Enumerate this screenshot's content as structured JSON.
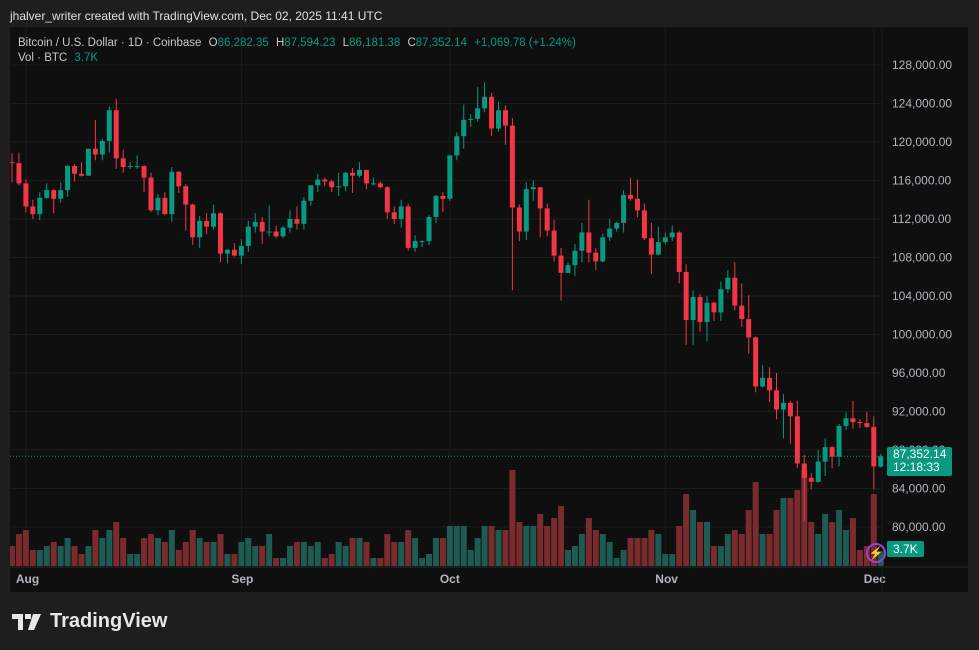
{
  "header": {
    "attribution": "jhalver_writer created with TradingView.com, Dec 02, 2025 11:41 UTC"
  },
  "legend": {
    "symbol": "Bitcoin / U.S. Dollar · 1D · Coinbase",
    "o_label": "O",
    "o": "86,282.35",
    "h_label": "H",
    "h": "87,594.23",
    "l_label": "L",
    "l": "86,181.38",
    "c_label": "C",
    "c": "87,352.14",
    "change": "+1,069.78 (+1.24%)",
    "vol_label": "Vol · BTC",
    "vol": "3.7K"
  },
  "price_tag": {
    "price": "87,352.14",
    "countdown": "12:18:33",
    "volume": "3.7K"
  },
  "brand": {
    "name": "TradingView"
  },
  "colors": {
    "up": "#089981",
    "down": "#f23645",
    "vol_up": "#1d5b53",
    "vol_down": "#7a2b2d",
    "background": "#0f0f0f"
  },
  "chart_data": {
    "type": "candlestick",
    "ylim": [
      76000,
      130000
    ],
    "y_ticks": [
      "80,000.00",
      "84,000.00",
      "88,000.00",
      "92,000.00",
      "96,000.00",
      "100,000.00",
      "104,000.00",
      "108,000.00",
      "112,000.00",
      "116,000.00",
      "120,000.00",
      "124,000.00",
      "128,000.00"
    ],
    "x_ticks": [
      "Aug",
      "Sep",
      "Oct",
      "Nov",
      "Dec"
    ],
    "volume_unit": "K BTC",
    "candles_fields": [
      "date",
      "open",
      "high",
      "low",
      "close",
      "volume"
    ],
    "candles": [
      [
        "07-30",
        117900,
        118800,
        115800,
        117800,
        5
      ],
      [
        "07-31",
        117800,
        118900,
        115500,
        115700,
        8
      ],
      [
        "08-01",
        115700,
        116100,
        112700,
        113300,
        9
      ],
      [
        "08-02",
        113300,
        114000,
        112000,
        112500,
        4
      ],
      [
        "08-03",
        112500,
        114800,
        111900,
        114200,
        4
      ],
      [
        "08-04",
        114200,
        115700,
        114100,
        115000,
        5
      ],
      [
        "08-05",
        115000,
        115100,
        112600,
        114100,
        6
      ],
      [
        "08-06",
        114100,
        115800,
        113700,
        115000,
        5
      ],
      [
        "08-07",
        115000,
        117600,
        114300,
        117500,
        7
      ],
      [
        "08-08",
        117500,
        117700,
        115900,
        116700,
        5
      ],
      [
        "08-09",
        116700,
        117900,
        116400,
        116500,
        3
      ],
      [
        "08-10",
        116500,
        119300,
        116500,
        119300,
        5
      ],
      [
        "08-11",
        119300,
        122300,
        118100,
        118700,
        9
      ],
      [
        "08-12",
        118700,
        120300,
        118100,
        120100,
        7
      ],
      [
        "08-13",
        120100,
        123700,
        118900,
        123300,
        9
      ],
      [
        "08-14",
        123300,
        124500,
        117200,
        118300,
        11
      ],
      [
        "08-15",
        118300,
        119200,
        116800,
        117400,
        7
      ],
      [
        "08-16",
        117400,
        117900,
        117200,
        117500,
        3
      ],
      [
        "08-17",
        117500,
        118600,
        117200,
        117500,
        3
      ],
      [
        "08-18",
        117500,
        117600,
        114800,
        116300,
        7
      ],
      [
        "08-19",
        116300,
        116800,
        112700,
        112900,
        8
      ],
      [
        "08-20",
        112900,
        114600,
        112400,
        114200,
        7
      ],
      [
        "08-21",
        114200,
        114800,
        112400,
        112500,
        6
      ],
      [
        "08-22",
        112500,
        117400,
        111700,
        116900,
        9
      ],
      [
        "08-23",
        116900,
        117000,
        114700,
        115400,
        4
      ],
      [
        "08-24",
        115400,
        115600,
        110800,
        113500,
        6
      ],
      [
        "08-25",
        113500,
        113600,
        109300,
        110100,
        9
      ],
      [
        "08-26",
        110100,
        112300,
        109000,
        111800,
        7
      ],
      [
        "08-27",
        111800,
        112600,
        110400,
        111200,
        6
      ],
      [
        "08-28",
        111200,
        113500,
        110900,
        112600,
        6
      ],
      [
        "08-29",
        112600,
        112700,
        107500,
        108400,
        8
      ],
      [
        "08-30",
        108400,
        108900,
        107400,
        108800,
        3
      ],
      [
        "08-31",
        108800,
        109500,
        108100,
        108200,
        3
      ],
      [
        "09-01",
        108200,
        109900,
        107300,
        109200,
        6
      ],
      [
        "09-02",
        109200,
        111800,
        108600,
        111200,
        7
      ],
      [
        "09-03",
        111200,
        112600,
        110600,
        111700,
        5
      ],
      [
        "09-04",
        111700,
        112200,
        109400,
        110700,
        5
      ],
      [
        "09-05",
        110700,
        113400,
        110200,
        110700,
        8
      ],
      [
        "09-06",
        110700,
        111300,
        110000,
        110200,
        2
      ],
      [
        "09-07",
        110200,
        111300,
        110000,
        111100,
        2
      ],
      [
        "09-08",
        111100,
        112900,
        110600,
        112000,
        5
      ],
      [
        "09-09",
        112000,
        113300,
        110900,
        111500,
        6
      ],
      [
        "09-10",
        111500,
        114300,
        110900,
        113900,
        6
      ],
      [
        "09-11",
        113900,
        115500,
        113400,
        115500,
        5
      ],
      [
        "09-12",
        115500,
        116700,
        114800,
        116100,
        6
      ],
      [
        "09-13",
        116100,
        116300,
        115400,
        115900,
        2
      ],
      [
        "09-14",
        115900,
        116100,
        114800,
        115300,
        3
      ],
      [
        "09-15",
        115300,
        116800,
        114400,
        115400,
        6
      ],
      [
        "09-16",
        115400,
        116900,
        114900,
        116800,
        5
      ],
      [
        "09-17",
        116800,
        117300,
        114700,
        116500,
        7
      ],
      [
        "09-18",
        116500,
        117900,
        116300,
        117100,
        7
      ],
      [
        "09-19",
        117100,
        117100,
        115100,
        115700,
        6
      ],
      [
        "09-20",
        115700,
        116300,
        115500,
        115700,
        2
      ],
      [
        "09-21",
        115700,
        115900,
        115200,
        115300,
        2
      ],
      [
        "09-22",
        115300,
        115400,
        112000,
        112700,
        8
      ],
      [
        "09-23",
        112700,
        113300,
        111500,
        112000,
        6
      ],
      [
        "09-24",
        112000,
        114000,
        111100,
        113300,
        6
      ],
      [
        "09-25",
        113300,
        113600,
        108700,
        109000,
        9
      ],
      [
        "09-26",
        109000,
        110300,
        108600,
        109700,
        7
      ],
      [
        "09-27",
        109700,
        109800,
        109100,
        109700,
        2
      ],
      [
        "09-28",
        109700,
        112400,
        109300,
        112200,
        3
      ],
      [
        "09-29",
        112200,
        114500,
        111600,
        114400,
        7
      ],
      [
        "09-30",
        114400,
        114800,
        112700,
        114100,
        7
      ],
      [
        "10-01",
        114100,
        118700,
        113900,
        118600,
        10
      ],
      [
        "10-02",
        118600,
        121000,
        118100,
        120600,
        10
      ],
      [
        "10-03",
        120600,
        123900,
        119300,
        122300,
        10
      ],
      [
        "10-04",
        122300,
        122900,
        121600,
        122400,
        4
      ],
      [
        "10-05",
        122400,
        125700,
        122100,
        123500,
        7
      ],
      [
        "10-06",
        123500,
        126200,
        123100,
        124700,
        10
      ],
      [
        "10-07",
        124700,
        125100,
        120600,
        121400,
        10
      ],
      [
        "10-08",
        121400,
        124200,
        121100,
        123300,
        9
      ],
      [
        "10-09",
        123300,
        123800,
        119700,
        121700,
        9
      ],
      [
        "10-10",
        121700,
        122500,
        104600,
        113200,
        24
      ],
      [
        "10-11",
        113200,
        113500,
        109700,
        110700,
        11
      ],
      [
        "10-12",
        110700,
        115800,
        109800,
        115100,
        10
      ],
      [
        "10-13",
        115100,
        116000,
        113900,
        115300,
        10
      ],
      [
        "10-14",
        115300,
        115300,
        110100,
        113100,
        13
      ],
      [
        "10-15",
        113100,
        113600,
        110200,
        110800,
        10
      ],
      [
        "10-16",
        110800,
        111900,
        107600,
        108200,
        12
      ],
      [
        "10-17",
        108200,
        109000,
        103500,
        106400,
        15
      ],
      [
        "10-18",
        106400,
        107500,
        106400,
        107200,
        4
      ],
      [
        "10-19",
        107200,
        109400,
        106100,
        108700,
        5
      ],
      [
        "10-20",
        108700,
        111600,
        107500,
        110600,
        8
      ],
      [
        "10-21",
        110600,
        114000,
        107500,
        108500,
        12
      ],
      [
        "10-22",
        108500,
        109000,
        106700,
        107600,
        9
      ],
      [
        "10-23",
        107600,
        110500,
        107500,
        110100,
        8
      ],
      [
        "10-24",
        110100,
        112000,
        109700,
        111000,
        6
      ],
      [
        "10-25",
        111000,
        111700,
        110700,
        111600,
        2
      ],
      [
        "10-26",
        111600,
        115000,
        110600,
        114500,
        4
      ],
      [
        "10-27",
        114500,
        116300,
        113900,
        114100,
        7
      ],
      [
        "10-28",
        114100,
        116100,
        112200,
        112900,
        7
      ],
      [
        "10-29",
        112900,
        113600,
        109800,
        110000,
        7
      ],
      [
        "10-30",
        110000,
        111600,
        106300,
        108300,
        9
      ],
      [
        "10-31",
        108300,
        111200,
        108200,
        109600,
        8
      ],
      [
        "11-01",
        109600,
        110600,
        109400,
        110100,
        3
      ],
      [
        "11-02",
        110100,
        111300,
        109700,
        110600,
        3
      ],
      [
        "11-03",
        110600,
        110800,
        105300,
        106500,
        10
      ],
      [
        "11-04",
        106500,
        107300,
        98900,
        101500,
        18
      ],
      [
        "11-05",
        101500,
        104600,
        98900,
        103900,
        14
      ],
      [
        "11-06",
        103900,
        104200,
        100300,
        101300,
        11
      ],
      [
        "11-07",
        101300,
        104000,
        99300,
        103300,
        11
      ],
      [
        "11-08",
        103300,
        103400,
        101400,
        102300,
        5
      ],
      [
        "11-09",
        102300,
        105500,
        101400,
        104700,
        5
      ],
      [
        "11-10",
        104700,
        106700,
        104300,
        105900,
        8
      ],
      [
        "11-11",
        105900,
        107500,
        102500,
        103000,
        9
      ],
      [
        "11-12",
        103000,
        105300,
        100800,
        101600,
        8
      ],
      [
        "11-13",
        101600,
        104100,
        98000,
        99700,
        14
      ],
      [
        "11-14",
        99700,
        99800,
        94000,
        94600,
        21
      ],
      [
        "11-15",
        94600,
        96800,
        94500,
        95500,
        8
      ],
      [
        "11-16",
        95500,
        96600,
        93000,
        94200,
        8
      ],
      [
        "11-17",
        94200,
        96000,
        91200,
        92200,
        14
      ],
      [
        "11-18",
        92200,
        93800,
        89200,
        92900,
        17
      ],
      [
        "11-19",
        92900,
        93100,
        88600,
        91500,
        17
      ],
      [
        "11-20",
        91500,
        93100,
        86100,
        86600,
        19
      ],
      [
        "11-21",
        86600,
        87500,
        80600,
        85100,
        24
      ],
      [
        "11-22",
        85100,
        85600,
        83900,
        84700,
        11
      ],
      [
        "11-23",
        84700,
        88000,
        84600,
        86800,
        8
      ],
      [
        "11-24",
        86800,
        89200,
        85300,
        88300,
        13
      ],
      [
        "11-25",
        88300,
        88400,
        86100,
        87300,
        11
      ],
      [
        "11-26",
        87300,
        90700,
        86300,
        90500,
        14
      ],
      [
        "11-27",
        90500,
        91900,
        90100,
        91300,
        9
      ],
      [
        "11-28",
        91300,
        93100,
        90200,
        90900,
        12
      ],
      [
        "11-29",
        90900,
        91200,
        90300,
        90800,
        4
      ],
      [
        "11-30",
        90800,
        92000,
        90300,
        90400,
        5
      ],
      [
        "12-01",
        90400,
        91500,
        83900,
        86300,
        18
      ],
      [
        "12-02",
        86282.35,
        87594.23,
        86181.38,
        87352.14,
        3.7
      ]
    ]
  }
}
